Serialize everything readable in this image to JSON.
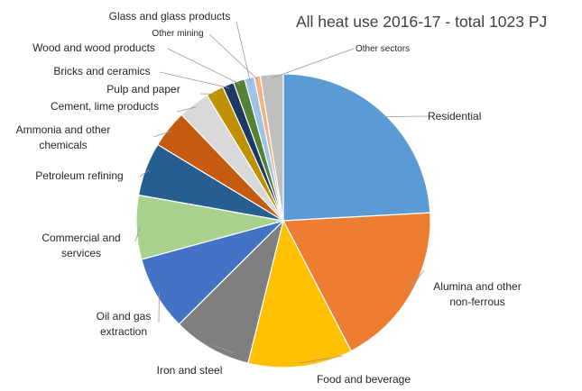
{
  "chart_data": {
    "type": "pie",
    "title": "All  heat use 2016-17 - total 1023 PJ",
    "series": [
      {
        "label": "Residential",
        "value": 25.0,
        "color": "#5b9bd5"
      },
      {
        "label": "Alumina and other non-ferrous",
        "value": 18.9,
        "color": "#ed7d31"
      },
      {
        "label": "Food and beverage",
        "value": 11.9,
        "color": "#ffc000"
      },
      {
        "label": "Iron and steel",
        "value": 9.0,
        "color": "#7f7f7f"
      },
      {
        "label": "Oil and  gas extraction",
        "value": 8.5,
        "color": "#4472c4"
      },
      {
        "label": "Commercial and services",
        "value": 7.3,
        "color": "#a9d18e"
      },
      {
        "label": "Petroleum refining",
        "value": 6.1,
        "color": "#255e91"
      },
      {
        "label": "Ammonia and other chemicals",
        "value": 4.3,
        "color": "#c55a11"
      },
      {
        "label": "Cement, lime products",
        "value": 3.6,
        "color": "#d9d9d9"
      },
      {
        "label": "Pulp and paper",
        "value": 2.0,
        "color": "#bf9000"
      },
      {
        "label": "Bricks and ceramics",
        "value": 1.3,
        "color": "#203864"
      },
      {
        "label": "Wood and wood products",
        "value": 1.3,
        "color": "#548235"
      },
      {
        "label": "Glass and glass products",
        "value": 1.1,
        "color": "#9dc3e6"
      },
      {
        "label": "Other mining",
        "value": 0.7,
        "color": "#f4b183"
      },
      {
        "label": "Other sectors",
        "value": 2.6,
        "color": "#bfbfbf"
      }
    ]
  }
}
